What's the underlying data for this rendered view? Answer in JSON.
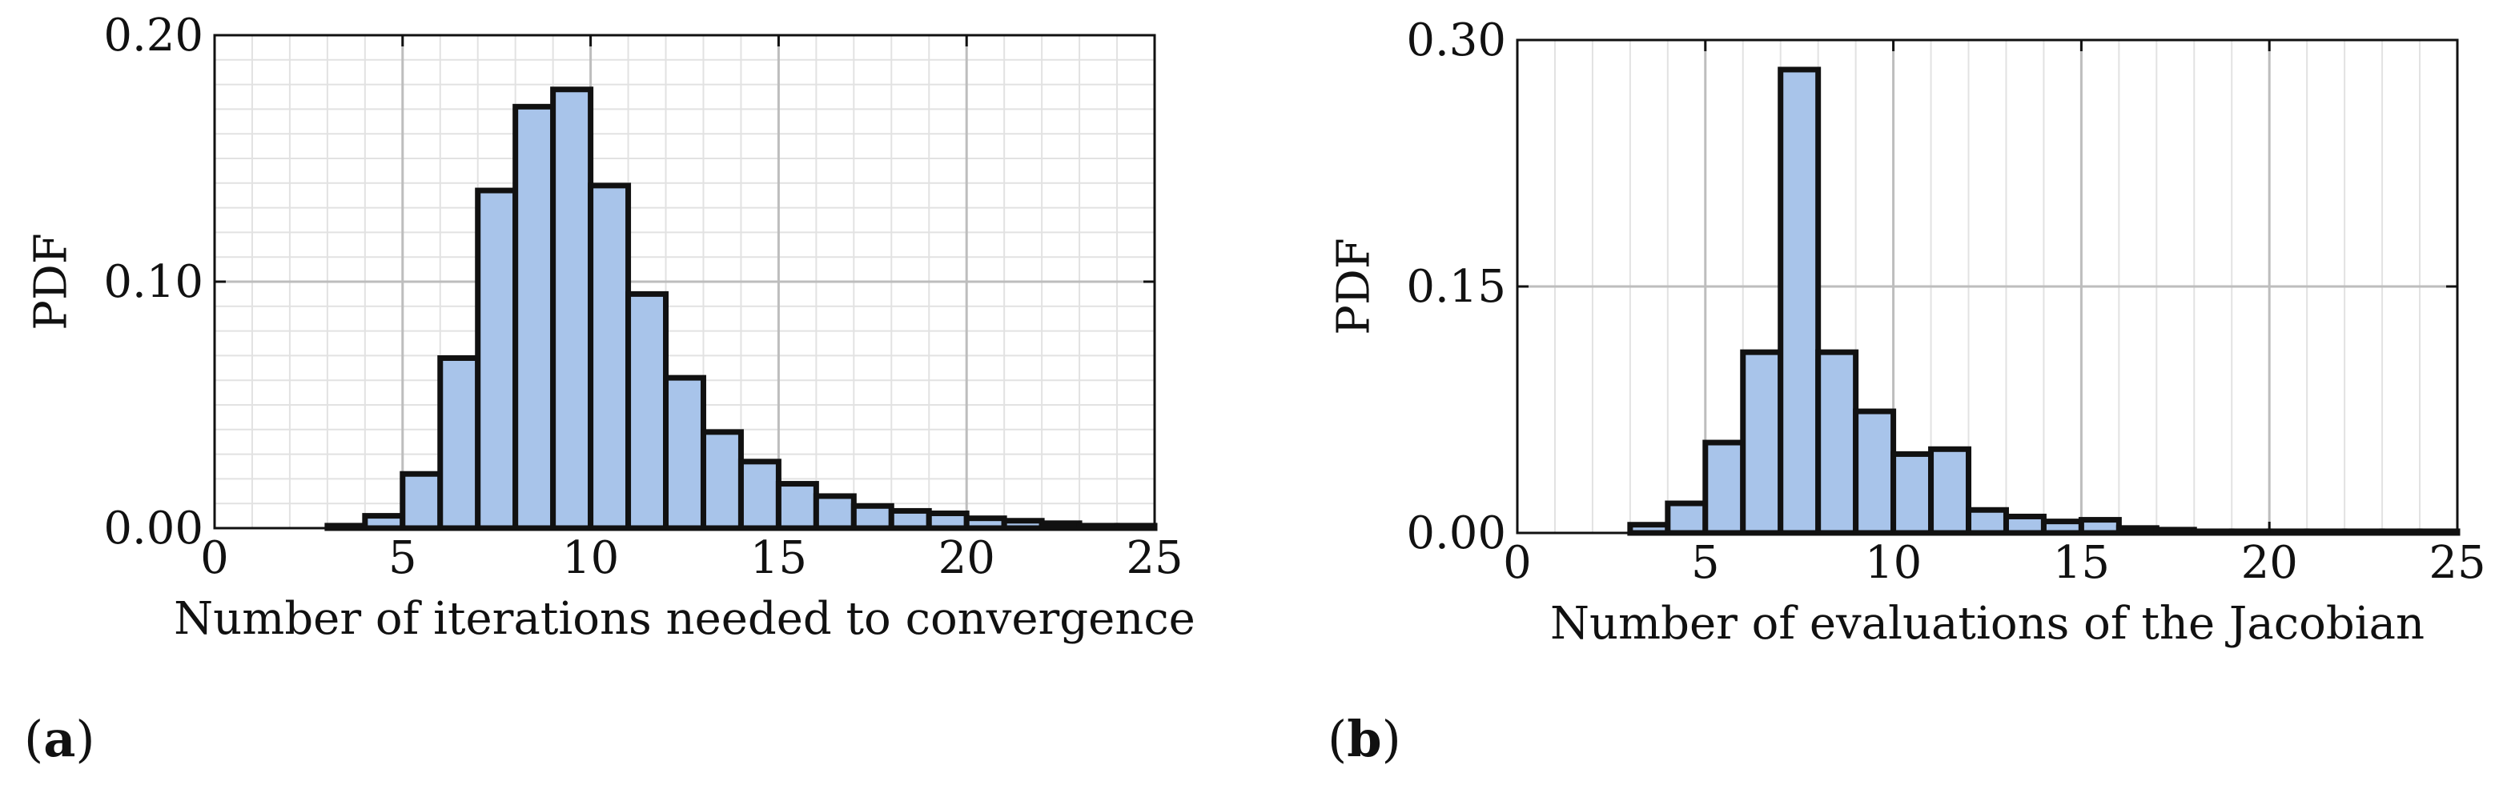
{
  "colors": {
    "bar_fill": "#a8c4ea",
    "bar_edge": "#111111",
    "grid_major": "#bdbdbd",
    "grid_minor": "#e2e2e2",
    "frame": "#111111"
  },
  "chart_data": [
    {
      "type": "bar",
      "panel": "a",
      "panel_label": {
        "open": "(",
        "letter": "a",
        "close": ")"
      },
      "xlabel": "Number of iterations needed to convergence",
      "ylabel": "PDF",
      "xlim": [
        0,
        25
      ],
      "ylim": [
        0,
        0.2
      ],
      "xticks": [
        0,
        5,
        10,
        15,
        20,
        25
      ],
      "xtick_labels": [
        "0",
        "5",
        "10",
        "15",
        "20",
        "25"
      ],
      "yticks": [
        0,
        0.1,
        0.2
      ],
      "ytick_labels": [
        "0.00",
        "0.10",
        "0.20"
      ],
      "grid": {
        "major": true,
        "minor": true,
        "minor_x_step": 1,
        "minor_y_step": 0.01
      },
      "bin_width": 1,
      "bins": [
        3,
        4,
        5,
        6,
        7,
        8,
        9,
        10,
        11,
        12,
        13,
        14,
        15,
        16,
        17,
        18,
        19,
        20,
        21,
        22,
        23,
        24
      ],
      "values": [
        0.001,
        0.005,
        0.022,
        0.069,
        0.137,
        0.171,
        0.178,
        0.139,
        0.095,
        0.061,
        0.039,
        0.027,
        0.018,
        0.013,
        0.009,
        0.007,
        0.006,
        0.004,
        0.003,
        0.002,
        0.001,
        0.001
      ]
    },
    {
      "type": "bar",
      "panel": "b",
      "panel_label": {
        "open": "(",
        "letter": "b",
        "close": ")"
      },
      "xlabel": "Number of evaluations of the Jacobian",
      "ylabel": "PDF",
      "xlim": [
        0,
        25
      ],
      "ylim": [
        0,
        0.3
      ],
      "xticks": [
        0,
        5,
        10,
        15,
        20,
        25
      ],
      "xtick_labels": [
        "0",
        "5",
        "10",
        "15",
        "20",
        "25"
      ],
      "yticks": [
        0,
        0.15,
        0.3
      ],
      "ytick_labels": [
        "0.00",
        "0.15",
        "0.30"
      ],
      "grid": {
        "major": true,
        "minor": true,
        "minor_x_step": 1,
        "minor_y_step": null
      },
      "bin_width": 1,
      "bins": [
        3,
        4,
        5,
        6,
        7,
        8,
        9,
        10,
        11,
        12,
        13,
        14,
        15,
        16,
        17,
        18,
        19,
        20,
        21,
        22,
        23,
        24
      ],
      "values": [
        0.005,
        0.018,
        0.055,
        0.11,
        0.282,
        0.11,
        0.074,
        0.048,
        0.051,
        0.014,
        0.01,
        0.007,
        0.008,
        0.003,
        0.002,
        0.001,
        0.001,
        0.001,
        0.001,
        0.001,
        0.001,
        0.001
      ]
    }
  ]
}
